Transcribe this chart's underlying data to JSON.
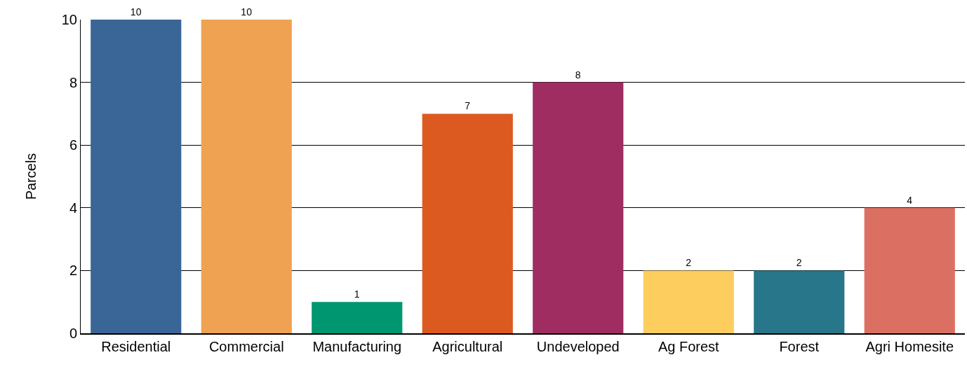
{
  "chart_data": {
    "type": "bar",
    "ylabel": "Parcels",
    "categories": [
      "Residential",
      "Commercial",
      "Manufacturing",
      "Agricultural",
      "Undeveloped",
      "Ag Forest",
      "Forest",
      "Agri Homesite"
    ],
    "values": [
      10,
      10,
      1,
      7,
      8,
      2,
      2,
      4
    ],
    "colors": [
      "#3a6597",
      "#efa352",
      "#009670",
      "#dc5a20",
      "#a02d62",
      "#fdcd5e",
      "#277689",
      "#db7062"
    ],
    "ylim": [
      0,
      10
    ],
    "yticks": [
      0,
      2,
      4,
      6,
      8,
      10
    ],
    "grid": "y",
    "data_labels": true
  }
}
